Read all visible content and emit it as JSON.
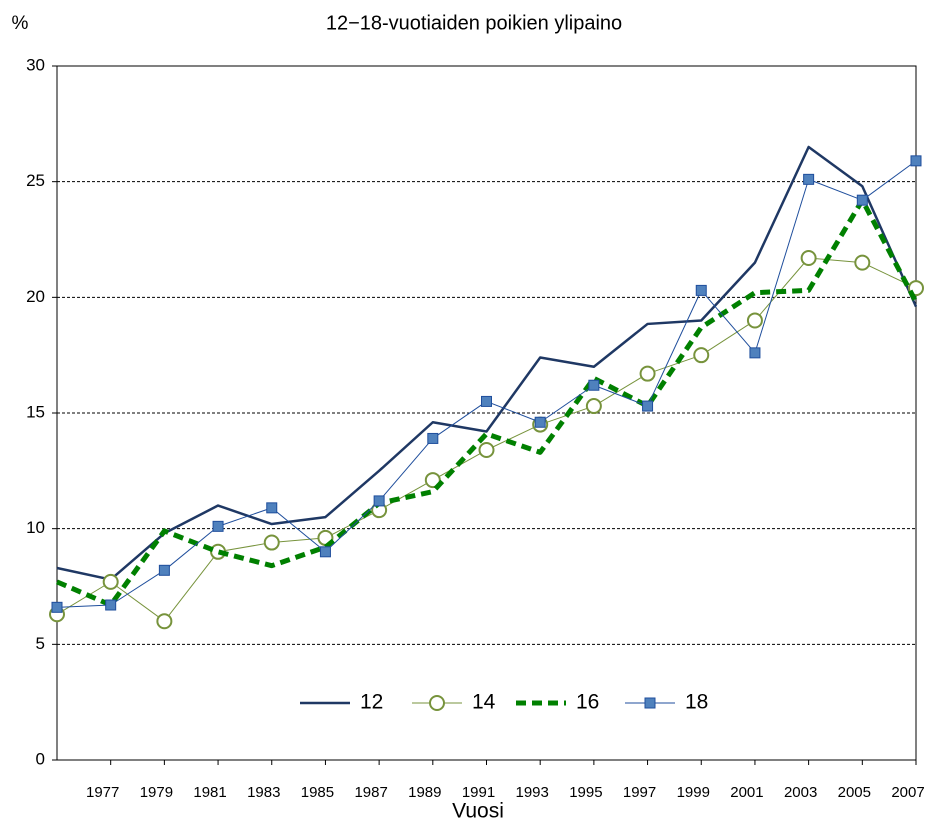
{
  "chart_data": {
    "type": "line",
    "title": "12−18-vuotiaiden poikien ylipaino",
    "y_label": "%",
    "x_label": "Vuosi",
    "x": [
      1975,
      1977,
      1979,
      1981,
      1983,
      1985,
      1987,
      1989,
      1991,
      1993,
      1995,
      1997,
      1999,
      2001,
      2003,
      2005,
      2007
    ],
    "xlim": [
      1975,
      2007
    ],
    "xticks": [
      1977,
      1979,
      1981,
      1983,
      1985,
      1987,
      1989,
      1991,
      1993,
      1995,
      1997,
      1999,
      2001,
      2003,
      2005,
      2007
    ],
    "ylim": [
      0,
      30
    ],
    "yticks": [
      0,
      5,
      10,
      15,
      20,
      25,
      30
    ],
    "grid": true,
    "legend": "bottom",
    "series": [
      {
        "name": "12",
        "color": "#1f3864",
        "width": 2.5,
        "dash": false,
        "marker": "none",
        "values": [
          8.3,
          7.8,
          9.8,
          11.0,
          10.2,
          10.5,
          12.5,
          14.6,
          14.2,
          17.4,
          17.0,
          18.85,
          19.0,
          21.5,
          26.5,
          24.8,
          19.6
        ]
      },
      {
        "name": "14",
        "color": "#77933c",
        "width": 1,
        "dash": false,
        "marker": "circle",
        "values": [
          6.3,
          7.7,
          6.0,
          9.0,
          9.4,
          9.6,
          10.8,
          12.1,
          13.4,
          14.5,
          15.3,
          16.7,
          17.5,
          19.0,
          21.7,
          21.5,
          20.4
        ]
      },
      {
        "name": "16",
        "color": "#008000",
        "width": 5,
        "dash": true,
        "marker": "none",
        "values": [
          7.7,
          6.7,
          9.9,
          9.0,
          8.4,
          9.2,
          11.1,
          11.6,
          14.1,
          13.3,
          16.5,
          15.3,
          18.7,
          20.2,
          20.3,
          24.2,
          19.8
        ]
      },
      {
        "name": "18",
        "color": "#1f4e9c",
        "width": 1,
        "dash": false,
        "marker": "square",
        "values": [
          6.6,
          6.7,
          8.2,
          10.1,
          10.9,
          9.0,
          11.2,
          13.9,
          15.5,
          14.6,
          16.2,
          15.3,
          20.3,
          17.6,
          25.1,
          24.2,
          25.9
        ]
      }
    ]
  }
}
